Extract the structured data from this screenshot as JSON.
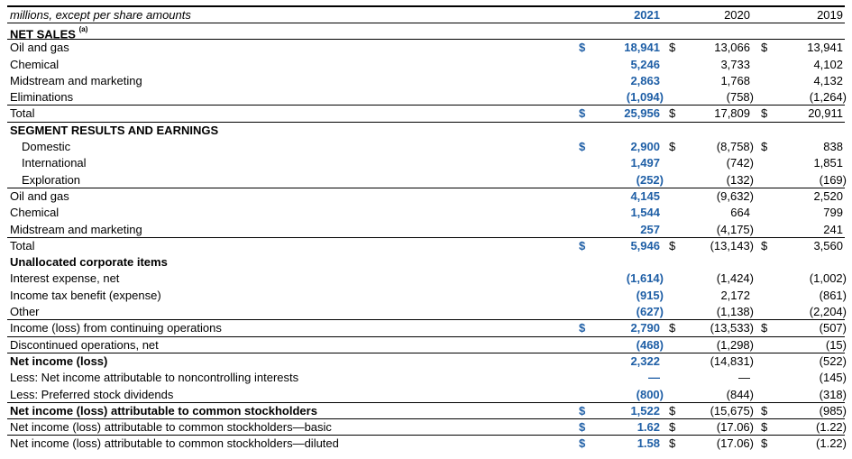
{
  "header": {
    "caption": "millions, except per share amounts",
    "years": [
      "2021",
      "2020",
      "2019"
    ]
  },
  "rows": [
    {
      "label": "NET SALES",
      "sup": "(a)",
      "style": "bold"
    },
    {
      "label": "Oil and gas",
      "dollar": true,
      "v": [
        "18,941",
        "13,066",
        "13,941"
      ]
    },
    {
      "label": "Chemical",
      "v": [
        "5,246",
        "3,733",
        "4,102"
      ]
    },
    {
      "label": "Midstream and marketing",
      "v": [
        "2,863",
        "1,768",
        "4,132"
      ]
    },
    {
      "label": "Eliminations",
      "v": [
        "(1,094)",
        "(758)",
        "(1,264)"
      ]
    },
    {
      "label": "Total",
      "dollar": true,
      "v": [
        "25,956",
        "17,809",
        "20,911"
      ]
    },
    {
      "label": "SEGMENT RESULTS AND EARNINGS",
      "style": "bold"
    },
    {
      "label": "Domestic",
      "indent": true,
      "dollar": true,
      "v": [
        "2,900",
        "(8,758)",
        "838"
      ]
    },
    {
      "label": "International",
      "indent": true,
      "v": [
        "1,497",
        "(742)",
        "1,851"
      ]
    },
    {
      "label": "Exploration",
      "indent": true,
      "v": [
        "(252)",
        "(132)",
        "(169)"
      ]
    },
    {
      "label": "Oil and gas",
      "v": [
        "4,145",
        "(9,632)",
        "2,520"
      ]
    },
    {
      "label": "Chemical",
      "v": [
        "1,544",
        "664",
        "799"
      ]
    },
    {
      "label": "Midstream and marketing",
      "v": [
        "257",
        "(4,175)",
        "241"
      ]
    },
    {
      "label": "Total",
      "dollar": true,
      "v": [
        "5,946",
        "(13,143)",
        "3,560"
      ]
    },
    {
      "label": "Unallocated corporate items",
      "style": "bold"
    },
    {
      "label": "Interest expense, net",
      "v": [
        "(1,614)",
        "(1,424)",
        "(1,002)"
      ]
    },
    {
      "label": "Income tax benefit (expense)",
      "v": [
        "(915)",
        "2,172",
        "(861)"
      ]
    },
    {
      "label": "Other",
      "v": [
        "(627)",
        "(1,138)",
        "(2,204)"
      ]
    },
    {
      "label": "Income (loss) from continuing operations",
      "dollar": true,
      "v": [
        "2,790",
        "(13,533)",
        "(507)"
      ]
    },
    {
      "label": "Discontinued operations, net",
      "v": [
        "(468)",
        "(1,298)",
        "(15)"
      ]
    },
    {
      "label": "Net income (loss)",
      "style": "bold",
      "v": [
        "2,322",
        "(14,831)",
        "(522)"
      ]
    },
    {
      "label": "Less: Net income attributable to noncontrolling interests",
      "v": [
        "—",
        "—",
        "(145)"
      ]
    },
    {
      "label": "Less: Preferred stock dividends",
      "v": [
        "(800)",
        "(844)",
        "(318)"
      ]
    },
    {
      "label": "Net income (loss) attributable to common stockholders",
      "style": "bold",
      "dollar": true,
      "v": [
        "1,522",
        "(15,675)",
        "(985)"
      ]
    },
    {
      "label": "Net income (loss) attributable to common stockholders—basic",
      "dollar": true,
      "v": [
        "1.62",
        "(17.06)",
        "(1.22)"
      ]
    },
    {
      "label": "Net income (loss) attributable to common stockholders—diluted",
      "dollar": true,
      "v": [
        "1.58",
        "(17.06)",
        "(1.22)"
      ]
    }
  ],
  "dollar_sign": "$"
}
